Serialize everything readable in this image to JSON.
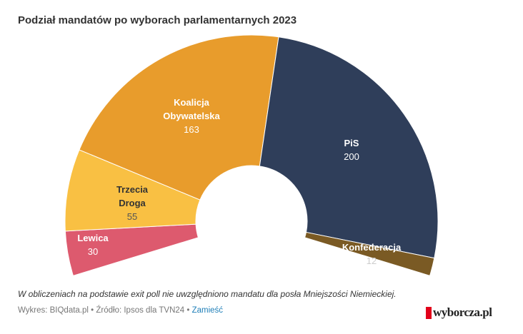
{
  "header": {
    "title": "Podział mandatów po wyborach parlamentarnych 2023"
  },
  "footer": {
    "note": "W obliczeniach na podstawie exit poll nie uwzględniono mandatu dla posła Mniejszości Niemieckiej.",
    "source_prefix": "Wykres: BIQdata.pl • Źródło: Ipsos dla TVN24 • ",
    "embed_link": "Zamieść",
    "logo": "wyborcza.pl",
    "logo_color": "#e2001a"
  },
  "chart_data": {
    "type": "pie",
    "variant": "semicircle-donut (parliament)",
    "title": "Podział mandatów po wyborach parlamentarnych 2023",
    "total": 460,
    "segments": [
      {
        "name": "Lewica",
        "label_lines": [
          "Lewica"
        ],
        "value": 30,
        "color": "#dd5a6e",
        "label_color": "#ffffff",
        "value_color": "#ffffff"
      },
      {
        "name": "Trzecia Droga",
        "label_lines": [
          "Trzecia",
          "Droga"
        ],
        "value": 55,
        "color": "#f9c043",
        "label_color": "#333333",
        "value_color": "#555555"
      },
      {
        "name": "Koalicja Obywatelska",
        "label_lines": [
          "Koalicja",
          "Obywatelska"
        ],
        "value": 163,
        "color": "#e89c2c",
        "label_color": "#ffffff",
        "value_color": "#ffffff"
      },
      {
        "name": "PiS",
        "label_lines": [
          "PiS"
        ],
        "value": 200,
        "color": "#2f3e5a",
        "label_color": "#ffffff",
        "value_color": "#ffffff"
      },
      {
        "name": "Konfederacja",
        "label_lines": [
          "Konfederacja"
        ],
        "value": 12,
        "color": "#7a5a24",
        "label_color": "#ffffff",
        "value_color": "#cccccc"
      }
    ]
  }
}
